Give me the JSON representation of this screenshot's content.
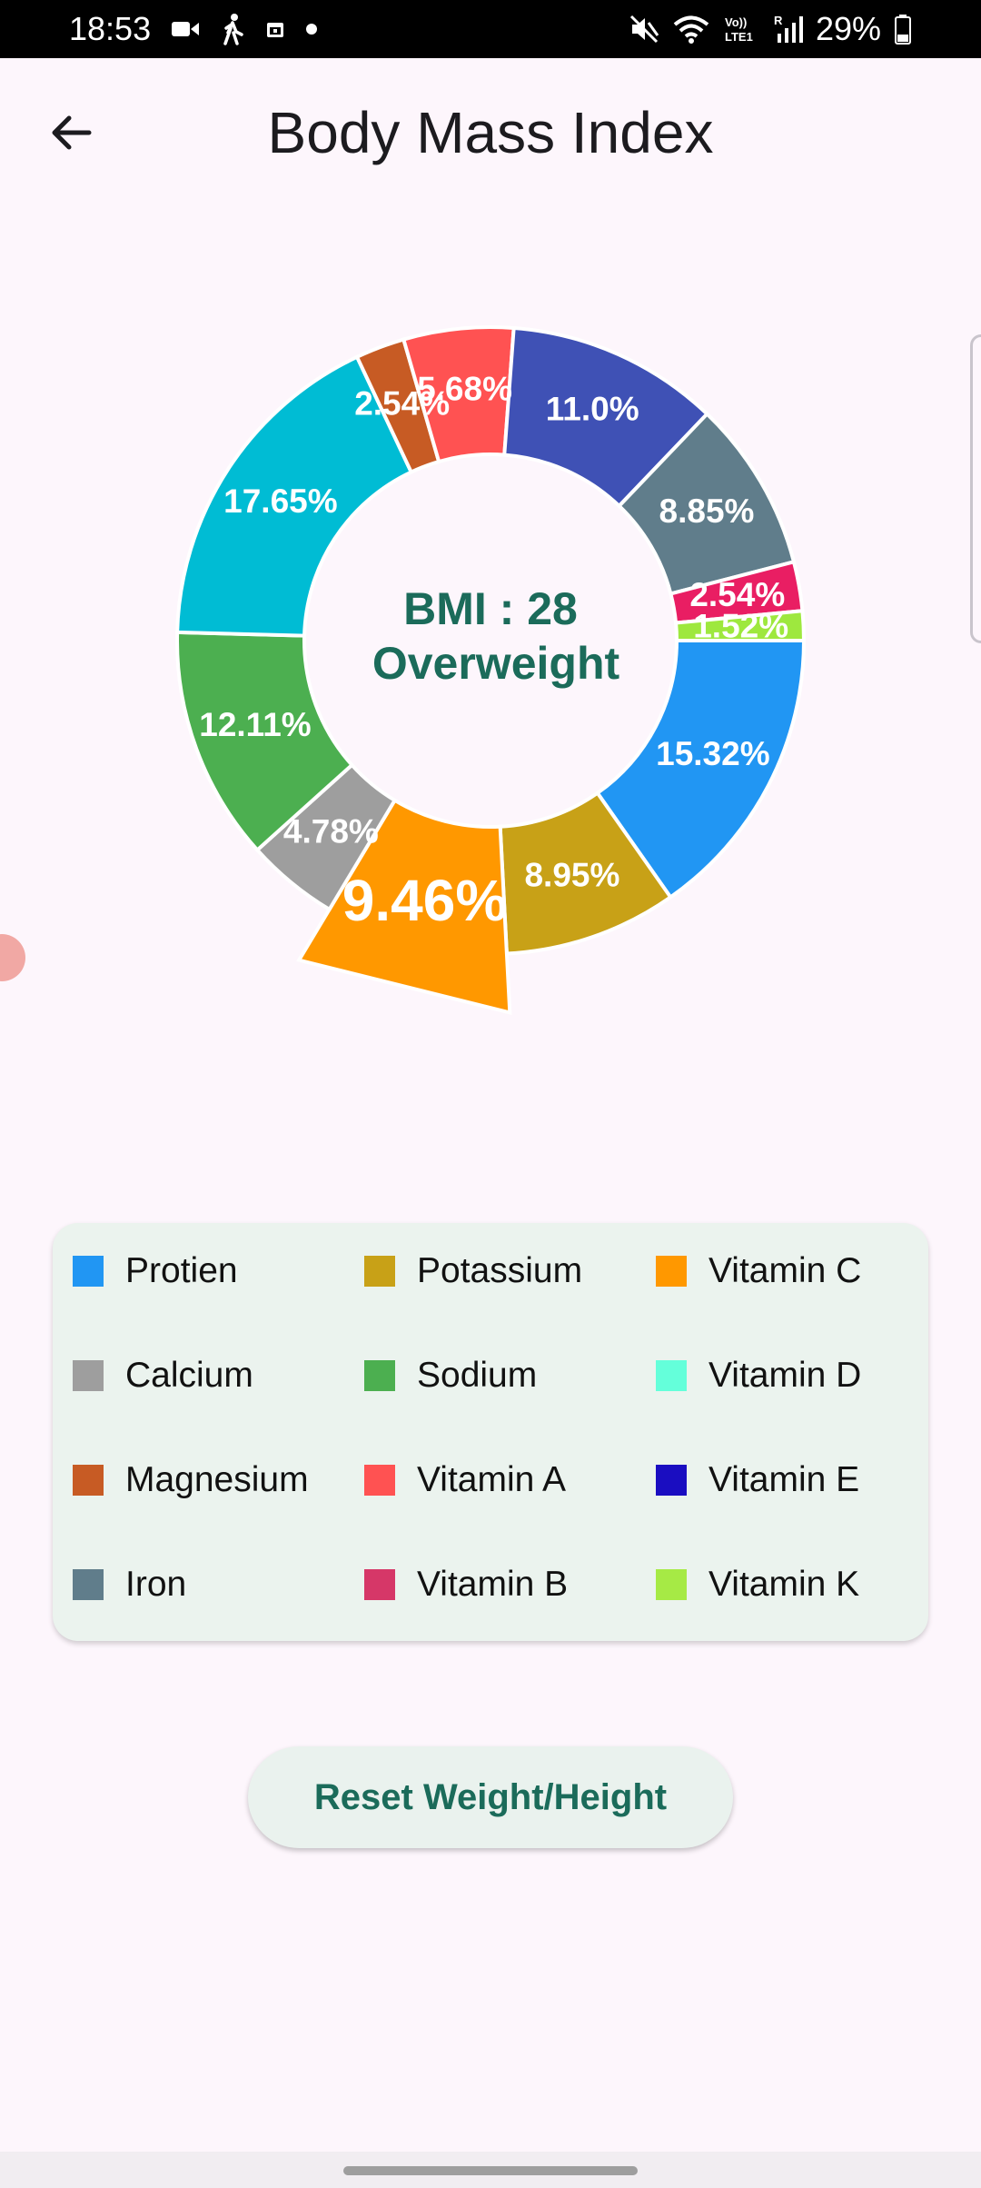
{
  "status_bar": {
    "time": "18:53",
    "battery": "29%",
    "left_icons": [
      "video-camera-icon",
      "walking-person-icon",
      "calendar-icon",
      "dot-icon"
    ],
    "right_icons": [
      "mute-icon",
      "wifi-icon",
      "volte-icon",
      "signal-icon",
      "battery-icon"
    ],
    "volte_label": "Vo)) LTE1",
    "roaming_label": "R"
  },
  "header": {
    "title": "Body Mass Index",
    "back_icon": "arrow-left-icon"
  },
  "chart_data": {
    "type": "pie",
    "variant": "donut",
    "center_text": [
      "BMI : 28",
      "Overweight"
    ],
    "highlighted_slice": "Vitamin C",
    "slices": [
      {
        "name": "Protien",
        "value": 15.32,
        "label": "15.32%",
        "color": "#2196f3"
      },
      {
        "name": "Potassium",
        "value": 8.95,
        "label": "8.95%",
        "color": "#c8a117"
      },
      {
        "name": "Vitamin C",
        "value": 9.46,
        "label": "9.46%",
        "color": "#ff9800"
      },
      {
        "name": "Calcium",
        "value": 4.78,
        "label": "4.78%",
        "color": "#9e9e9e"
      },
      {
        "name": "Sodium",
        "value": 12.11,
        "label": "12.11%",
        "color": "#4caf50"
      },
      {
        "name": "Vitamin D",
        "value": 17.65,
        "label": "17.65%",
        "color": "#00bcd4"
      },
      {
        "name": "Magnesium",
        "value": 2.54,
        "label": "2.54%",
        "color": "#c75b24"
      },
      {
        "name": "Vitamin A",
        "value": 5.68,
        "label": "5.68%",
        "color": "#ff5252"
      },
      {
        "name": "Vitamin E",
        "value": 11.0,
        "label": "11.0%",
        "color": "#3f51b5"
      },
      {
        "name": "Iron",
        "value": 8.85,
        "label": "8.85%",
        "color": "#607d8b"
      },
      {
        "name": "Vitamin B",
        "value": 2.54,
        "label": "2.54%",
        "color": "#e91e63"
      },
      {
        "name": "Vitamin K",
        "value": 1.52,
        "label": "1.52%",
        "color": "#9ee83e"
      }
    ]
  },
  "legend": {
    "items": [
      {
        "label": "Protien",
        "color": "#2196f3"
      },
      {
        "label": "Potassium",
        "color": "#c8a117"
      },
      {
        "label": "Vitamin C",
        "color": "#ff9800"
      },
      {
        "label": "Calcium",
        "color": "#9e9e9e"
      },
      {
        "label": "Sodium",
        "color": "#4caf50"
      },
      {
        "label": "Vitamin D",
        "color": "#64ffda"
      },
      {
        "label": "Magnesium",
        "color": "#c75b24"
      },
      {
        "label": "Vitamin A",
        "color": "#ff5252"
      },
      {
        "label": "Vitamin E",
        "color": "#1a0dc1"
      },
      {
        "label": "Iron",
        "color": "#607d8b"
      },
      {
        "label": "Vitamin B",
        "color": "#d63768"
      },
      {
        "label": "Vitamin K",
        "color": "#a6ea45"
      }
    ]
  },
  "actions": {
    "reset_label": "Reset Weight/Height"
  },
  "colors": {
    "background": "#fdf6fc",
    "accent_text": "#1b6b5a",
    "legend_background": "#ebf3ee"
  }
}
